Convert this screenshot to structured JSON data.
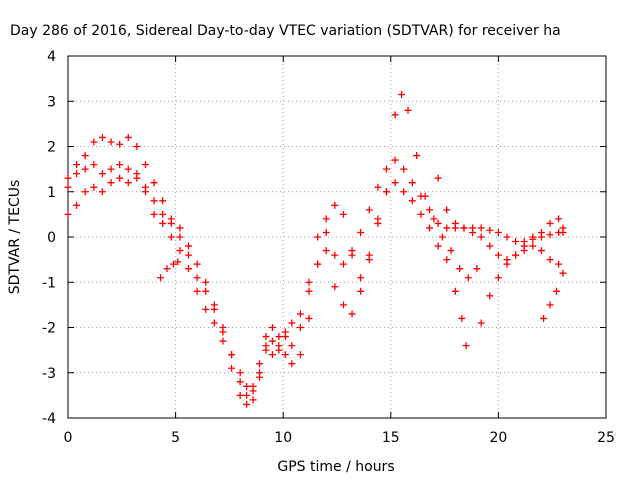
{
  "chart_data": {
    "type": "scatter",
    "title": "Day 286 of 2016, Sidereal Day-to-day VTEC variation (SDTVAR) for receiver ha",
    "xlabel": "GPS time / hours",
    "ylabel": "SDTVAR / TECUs",
    "xlim": [
      0,
      25
    ],
    "ylim": [
      -4,
      4
    ],
    "x_ticks": [
      0,
      5,
      10,
      15,
      20,
      25
    ],
    "y_ticks": [
      -4,
      -3,
      -2,
      -1,
      0,
      1,
      2,
      3,
      4
    ],
    "x_tick_labels": [
      "0",
      "5",
      "10",
      "15",
      "20",
      "25"
    ],
    "y_tick_labels": [
      "-4",
      "-3",
      "-2",
      "-1",
      "0",
      "1",
      "2",
      "3",
      "4"
    ],
    "grid": true,
    "legend": "none",
    "marker": "+",
    "color": "#ff0000",
    "series": [
      {
        "points": [
          [
            0.0,
            1.3
          ],
          [
            0.4,
            1.6
          ],
          [
            0.8,
            1.8
          ],
          [
            1.2,
            2.1
          ],
          [
            1.6,
            2.2
          ],
          [
            2.0,
            2.1
          ],
          [
            2.4,
            2.05
          ],
          [
            2.8,
            2.2
          ],
          [
            3.2,
            2.0
          ],
          [
            3.6,
            1.6
          ],
          [
            4.0,
            1.2
          ],
          [
            4.4,
            0.8
          ],
          [
            4.8,
            0.4
          ],
          [
            5.2,
            0.2
          ],
          [
            5.6,
            -0.4
          ],
          [
            6.0,
            -0.9
          ],
          [
            6.4,
            -1.2
          ],
          [
            6.8,
            -1.6
          ],
          [
            7.2,
            -2.1
          ],
          [
            7.6,
            -2.6
          ],
          [
            8.0,
            -3.0
          ],
          [
            8.3,
            -3.3
          ],
          [
            8.6,
            -3.4
          ],
          [
            8.9,
            -3.0
          ],
          [
            9.2,
            -2.4
          ],
          [
            9.5,
            -2.3
          ],
          [
            9.8,
            -2.4
          ],
          [
            10.1,
            -2.6
          ],
          [
            10.4,
            -2.8
          ],
          [
            10.8,
            -2.6
          ],
          [
            11.2,
            -1.8
          ],
          [
            11.6,
            -0.6
          ],
          [
            12.0,
            0.1
          ],
          [
            12.4,
            -0.4
          ],
          [
            12.8,
            -0.6
          ],
          [
            13.2,
            -0.3
          ],
          [
            13.6,
            0.1
          ],
          [
            14.0,
            0.6
          ],
          [
            14.4,
            1.1
          ],
          [
            14.8,
            1.5
          ],
          [
            15.2,
            1.7
          ],
          [
            15.6,
            1.5
          ],
          [
            16.0,
            1.2
          ],
          [
            16.4,
            0.9
          ],
          [
            16.8,
            0.6
          ],
          [
            17.2,
            0.3
          ],
          [
            17.6,
            0.2
          ],
          [
            18.0,
            0.2
          ],
          [
            18.4,
            0.2
          ],
          [
            18.8,
            0.2
          ],
          [
            19.2,
            0.2
          ],
          [
            19.6,
            0.15
          ],
          [
            20.0,
            0.1
          ],
          [
            20.4,
            0.0
          ],
          [
            20.8,
            -0.1
          ],
          [
            21.2,
            -0.1
          ],
          [
            21.6,
            -0.05
          ],
          [
            22.0,
            0.0
          ],
          [
            22.4,
            0.05
          ],
          [
            22.8,
            0.1
          ],
          [
            23.0,
            0.1
          ]
        ]
      },
      {
        "points": [
          [
            0.0,
            1.1
          ],
          [
            0.4,
            1.4
          ],
          [
            0.8,
            1.5
          ],
          [
            1.2,
            1.6
          ],
          [
            1.6,
            1.4
          ],
          [
            2.0,
            1.5
          ],
          [
            2.4,
            1.6
          ],
          [
            2.8,
            1.5
          ],
          [
            3.2,
            1.4
          ],
          [
            3.6,
            1.0
          ],
          [
            4.0,
            0.5
          ],
          [
            4.4,
            0.3
          ],
          [
            4.8,
            0.0
          ],
          [
            5.2,
            -0.3
          ],
          [
            5.6,
            -0.7
          ],
          [
            6.0,
            -1.2
          ],
          [
            6.4,
            -1.6
          ],
          [
            6.8,
            -1.9
          ],
          [
            7.2,
            -2.3
          ],
          [
            7.6,
            -2.9
          ],
          [
            8.0,
            -3.5
          ],
          [
            8.3,
            -3.7
          ],
          [
            8.6,
            -3.6
          ],
          [
            8.9,
            -3.1
          ],
          [
            9.2,
            -2.5
          ],
          [
            9.5,
            -2.6
          ],
          [
            9.8,
            -2.5
          ],
          [
            10.1,
            -2.2
          ],
          [
            10.4,
            -2.4
          ],
          [
            10.8,
            -2.0
          ],
          [
            11.2,
            -1.2
          ],
          [
            11.6,
            -0.6
          ],
          [
            12.0,
            -0.3
          ],
          [
            12.4,
            -1.1
          ],
          [
            12.8,
            -1.5
          ],
          [
            13.2,
            -1.7
          ],
          [
            13.6,
            -1.2
          ],
          [
            14.0,
            -0.4
          ],
          [
            14.4,
            0.4
          ],
          [
            14.8,
            1.0
          ],
          [
            15.2,
            1.2
          ],
          [
            15.6,
            1.0
          ],
          [
            16.0,
            0.8
          ],
          [
            16.4,
            0.5
          ],
          [
            16.8,
            0.2
          ],
          [
            17.2,
            -0.2
          ],
          [
            17.6,
            -0.5
          ],
          [
            18.0,
            -1.2
          ],
          [
            18.3,
            -1.8
          ],
          [
            18.5,
            -2.4
          ]
        ]
      },
      {
        "points": [
          [
            0.0,
            0.5
          ],
          [
            0.4,
            0.7
          ],
          [
            0.8,
            1.0
          ],
          [
            1.2,
            1.1
          ],
          [
            1.6,
            1.0
          ],
          [
            2.0,
            1.2
          ],
          [
            2.4,
            1.3
          ],
          [
            2.8,
            1.2
          ],
          [
            3.2,
            1.3
          ],
          [
            3.6,
            1.1
          ],
          [
            4.0,
            0.8
          ],
          [
            4.4,
            0.5
          ],
          [
            4.8,
            0.3
          ],
          [
            5.2,
            0.0
          ],
          [
            5.6,
            -0.2
          ],
          [
            6.0,
            -0.6
          ],
          [
            6.4,
            -1.0
          ],
          [
            6.8,
            -1.5
          ],
          [
            7.2,
            -2.0
          ],
          [
            7.6,
            -2.6
          ],
          [
            8.0,
            -3.2
          ],
          [
            8.3,
            -3.5
          ],
          [
            8.6,
            -3.3
          ],
          [
            8.9,
            -2.8
          ],
          [
            9.2,
            -2.2
          ],
          [
            9.5,
            -2.0
          ],
          [
            9.8,
            -2.2
          ],
          [
            10.1,
            -2.1
          ],
          [
            10.4,
            -1.9
          ],
          [
            10.8,
            -1.7
          ],
          [
            11.2,
            -1.0
          ],
          [
            11.6,
            0.0
          ],
          [
            12.0,
            0.4
          ],
          [
            12.4,
            0.7
          ],
          [
            12.8,
            0.5
          ],
          [
            13.2,
            -0.4
          ],
          [
            13.6,
            -0.9
          ],
          [
            14.0,
            -0.5
          ],
          [
            14.4,
            0.3
          ],
          [
            14.8,
            1.0
          ],
          [
            15.2,
            2.7
          ],
          [
            15.5,
            3.15
          ],
          [
            15.8,
            2.8
          ],
          [
            16.2,
            1.8
          ],
          [
            16.6,
            0.9
          ],
          [
            17.0,
            0.4
          ],
          [
            17.4,
            0.0
          ],
          [
            17.8,
            -0.3
          ],
          [
            18.2,
            -0.7
          ],
          [
            18.6,
            -0.9
          ],
          [
            19.0,
            -0.7
          ]
        ]
      },
      {
        "points": [
          [
            4.3,
            -0.9
          ],
          [
            4.6,
            -0.7
          ],
          [
            4.9,
            -0.6
          ],
          [
            5.1,
            -0.55
          ]
        ]
      },
      {
        "points": [
          [
            17.2,
            1.3
          ],
          [
            17.6,
            0.6
          ],
          [
            18.0,
            0.3
          ],
          [
            18.4,
            0.2
          ],
          [
            18.8,
            0.1
          ],
          [
            19.2,
            0.0
          ],
          [
            19.6,
            -0.2
          ],
          [
            20.0,
            -0.4
          ],
          [
            20.4,
            -0.5
          ],
          [
            20.8,
            -0.4
          ],
          [
            21.2,
            -0.3
          ],
          [
            21.6,
            -0.2
          ],
          [
            22.0,
            -0.3
          ],
          [
            22.4,
            -0.5
          ],
          [
            22.8,
            -0.6
          ]
        ]
      },
      {
        "points": [
          [
            19.2,
            -1.9
          ],
          [
            19.6,
            -1.3
          ],
          [
            20.0,
            -0.9
          ],
          [
            20.4,
            -0.6
          ],
          [
            20.8,
            -0.4
          ],
          [
            21.2,
            -0.2
          ],
          [
            21.6,
            0.0
          ],
          [
            22.0,
            0.1
          ],
          [
            22.4,
            0.3
          ],
          [
            22.8,
            0.4
          ],
          [
            23.0,
            0.2
          ]
        ]
      },
      {
        "points": [
          [
            22.1,
            -1.8
          ],
          [
            22.4,
            -1.5
          ],
          [
            22.7,
            -1.2
          ],
          [
            23.0,
            -0.8
          ]
        ]
      }
    ]
  }
}
